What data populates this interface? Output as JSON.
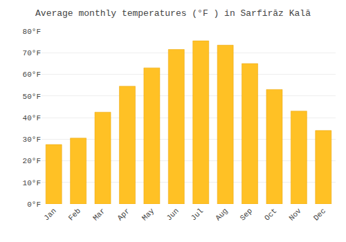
{
  "chart_data": {
    "type": "bar",
    "title": "Average monthly temperatures (°F ) in Sarfirāz Kalā",
    "categories": [
      "Jan",
      "Feb",
      "Mar",
      "Apr",
      "May",
      "Jun",
      "Jul",
      "Aug",
      "Sep",
      "Oct",
      "Nov",
      "Dec"
    ],
    "values": [
      27.5,
      30.5,
      42.5,
      54.5,
      63.0,
      71.5,
      75.5,
      73.5,
      65.0,
      53.0,
      43.0,
      34.0
    ],
    "color": "#FFC125",
    "ylim": [
      0,
      80
    ],
    "yticks": [
      {
        "value": 0,
        "label": "0°F"
      },
      {
        "value": 10,
        "label": "10°F"
      },
      {
        "value": 20,
        "label": "20°F"
      },
      {
        "value": 30,
        "label": "30°F"
      },
      {
        "value": 40,
        "label": "40°F"
      },
      {
        "value": 50,
        "label": "50°F"
      },
      {
        "value": 60,
        "label": "60°F"
      },
      {
        "value": 70,
        "label": "70°F"
      },
      {
        "value": 80,
        "label": "80°F"
      }
    ],
    "grid": true
  }
}
